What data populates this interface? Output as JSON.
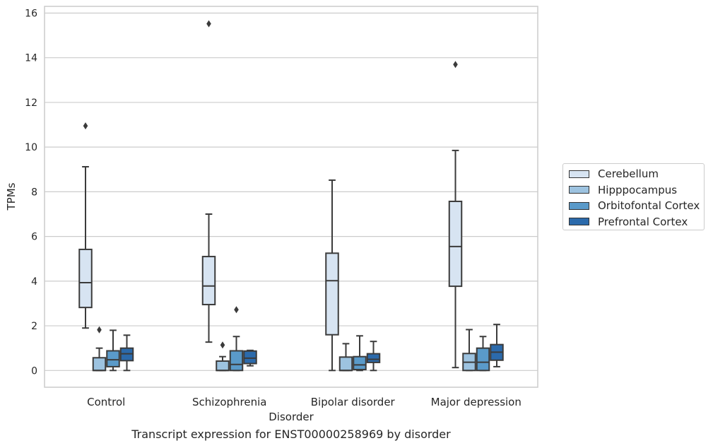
{
  "chart_data": {
    "type": "box",
    "xlabel": "Disorder",
    "ylabel": "TPMs",
    "ylim": [
      -0.75,
      16.3
    ],
    "yticks": [
      0,
      2,
      4,
      6,
      8,
      10,
      12,
      14,
      16
    ],
    "grid": "horizontal",
    "legend_position": "right",
    "categories": [
      "Control",
      "Schizophrenia",
      "Bipolar disorder",
      "Major depression"
    ],
    "series": [
      {
        "name": "Cerebellum",
        "color": "#d7e4f2",
        "boxes": [
          {
            "whisker_low": 1.9,
            "q1": 2.82,
            "median": 3.93,
            "q3": 5.42,
            "whisker_high": 9.12,
            "outliers": [
              10.95
            ]
          },
          {
            "whisker_low": 1.27,
            "q1": 2.95,
            "median": 3.78,
            "q3": 5.1,
            "whisker_high": 7.0,
            "outliers": [
              15.52
            ]
          },
          {
            "whisker_low": 0.0,
            "q1": 1.6,
            "median": 4.02,
            "q3": 5.25,
            "whisker_high": 8.52,
            "outliers": []
          },
          {
            "whisker_low": 0.13,
            "q1": 3.77,
            "median": 5.55,
            "q3": 7.57,
            "whisker_high": 9.85,
            "outliers": [
              13.7
            ]
          }
        ]
      },
      {
        "name": "Hipppocampus",
        "color": "#9dc3e0",
        "boxes": [
          {
            "whisker_low": 0.0,
            "q1": 0.0,
            "median": 0.0,
            "q3": 0.57,
            "whisker_high": 1.0,
            "outliers": [
              1.82
            ]
          },
          {
            "whisker_low": 0.0,
            "q1": 0.0,
            "median": 0.0,
            "q3": 0.42,
            "whisker_high": 0.62,
            "outliers": [
              1.14
            ]
          },
          {
            "whisker_low": 0.0,
            "q1": 0.0,
            "median": 0.0,
            "q3": 0.6,
            "whisker_high": 1.2,
            "outliers": []
          },
          {
            "whisker_low": 0.0,
            "q1": 0.0,
            "median": 0.37,
            "q3": 0.76,
            "whisker_high": 1.83,
            "outliers": []
          }
        ]
      },
      {
        "name": "Orbitofontal Cortex",
        "color": "#5a9ac9",
        "boxes": [
          {
            "whisker_low": 0.0,
            "q1": 0.17,
            "median": 0.48,
            "q3": 0.88,
            "whisker_high": 1.8,
            "outliers": []
          },
          {
            "whisker_low": 0.0,
            "q1": 0.0,
            "median": 0.27,
            "q3": 0.88,
            "whisker_high": 1.52,
            "outliers": [
              2.72
            ]
          },
          {
            "whisker_low": 0.0,
            "q1": 0.04,
            "median": 0.25,
            "q3": 0.62,
            "whisker_high": 1.55,
            "outliers": []
          },
          {
            "whisker_low": 0.0,
            "q1": 0.0,
            "median": 0.37,
            "q3": 1.0,
            "whisker_high": 1.52,
            "outliers": []
          }
        ]
      },
      {
        "name": "Prefrontal Cortex",
        "color": "#2b6aab",
        "boxes": [
          {
            "whisker_low": 0.0,
            "q1": 0.44,
            "median": 0.75,
            "q3": 1.0,
            "whisker_high": 1.58,
            "outliers": []
          },
          {
            "whisker_low": 0.21,
            "q1": 0.31,
            "median": 0.55,
            "q3": 0.87,
            "whisker_high": 0.9,
            "outliers": []
          },
          {
            "whisker_low": 0.0,
            "q1": 0.36,
            "median": 0.5,
            "q3": 0.75,
            "whisker_high": 1.3,
            "outliers": []
          },
          {
            "whisker_low": 0.17,
            "q1": 0.46,
            "median": 0.82,
            "q3": 1.16,
            "whisker_high": 2.06,
            "outliers": []
          }
        ]
      }
    ]
  },
  "caption": "Transcript expression for ENST00000258969 by disorder"
}
